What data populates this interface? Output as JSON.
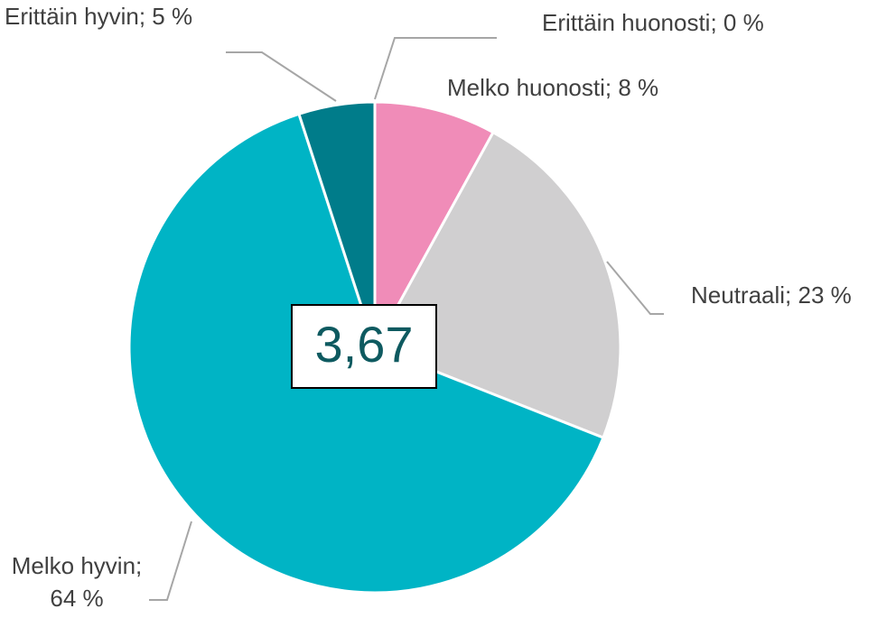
{
  "chart_data": {
    "type": "pie",
    "categories": [
      "Erittäin huonosti",
      "Melko huonosti",
      "Neutraali",
      "Melko hyvin",
      "Erittäin hyvin"
    ],
    "values": [
      0,
      8,
      23,
      64,
      5
    ],
    "value_labels": [
      "Erittäin huonosti; 0 %",
      "Melko huonosti; 8 %",
      "Neutraali; 23 %",
      "Melko hyvin; 64 %",
      "Erittäin hyvin; 5 %"
    ],
    "colors": [
      "#c0504d",
      "#f08cb8",
      "#d0cfd0",
      "#00b4c5",
      "#007c8a"
    ],
    "annotation": "3,67"
  }
}
